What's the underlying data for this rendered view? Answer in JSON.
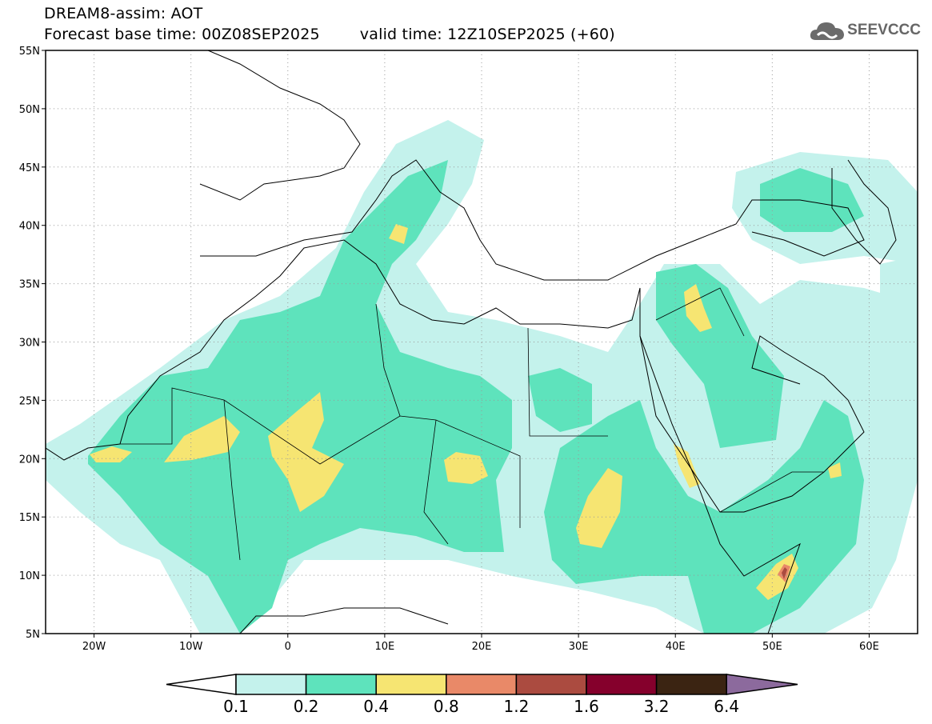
{
  "header": {
    "title": "DREAM8-assim: AOT",
    "base_time": "Forecast base time: 00Z08SEP2025",
    "valid_time": "valid time: 12Z10SEP2025 (+60)",
    "logo_text": "SEEVCCC"
  },
  "map": {
    "lon_range": [
      -25,
      65
    ],
    "lat_range": [
      5,
      55
    ],
    "lat_ticks": [
      {
        "value": 55,
        "label": "55N"
      },
      {
        "value": 50,
        "label": "50N"
      },
      {
        "value": 45,
        "label": "45N"
      },
      {
        "value": 40,
        "label": "40N"
      },
      {
        "value": 35,
        "label": "35N"
      },
      {
        "value": 30,
        "label": "30N"
      },
      {
        "value": 25,
        "label": "25N"
      },
      {
        "value": 20,
        "label": "20N"
      },
      {
        "value": 15,
        "label": "15N"
      },
      {
        "value": 10,
        "label": "10N"
      },
      {
        "value": 5,
        "label": "5N"
      }
    ],
    "lon_ticks": [
      {
        "value": -20,
        "label": "20W"
      },
      {
        "value": -10,
        "label": "10W"
      },
      {
        "value": 0,
        "label": "0"
      },
      {
        "value": 10,
        "label": "10E"
      },
      {
        "value": 20,
        "label": "20E"
      },
      {
        "value": 30,
        "label": "30E"
      },
      {
        "value": 40,
        "label": "40E"
      },
      {
        "value": 50,
        "label": "50E"
      },
      {
        "value": 60,
        "label": "60E"
      }
    ]
  },
  "colorbar": {
    "levels": [
      "0.1",
      "0.2",
      "0.4",
      "0.8",
      "1.2",
      "1.6",
      "3.2",
      "6.4"
    ],
    "colors": [
      "#ffffff",
      "#c4f2ec",
      "#5ee3bc",
      "#f6e572",
      "#e98968",
      "#ab4b40",
      "#85002c",
      "#3b2412",
      "#8c6a9d"
    ]
  }
}
